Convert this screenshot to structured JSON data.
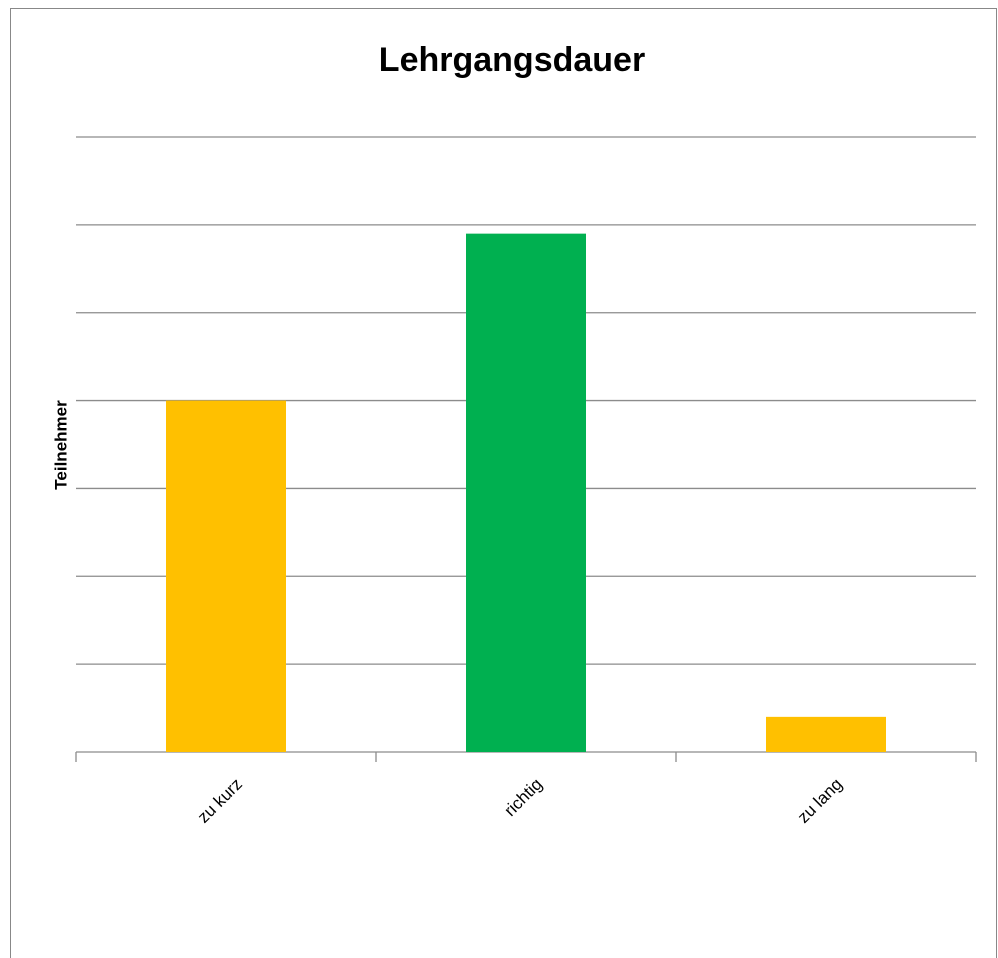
{
  "chart_data": {
    "type": "bar",
    "title": "Lehrgangsdauer",
    "y_label": "Teilnehmer",
    "categories": [
      "zu kurz",
      "richtig",
      "zu lang"
    ],
    "values": [
      4,
      5.9,
      0.4
    ],
    "colors": [
      "#ffc000",
      "#00b050",
      "#ffc000"
    ],
    "ylim": [
      0,
      7
    ],
    "yticks": [
      0,
      1,
      2,
      3,
      4,
      5,
      6,
      7
    ],
    "grid": true
  }
}
